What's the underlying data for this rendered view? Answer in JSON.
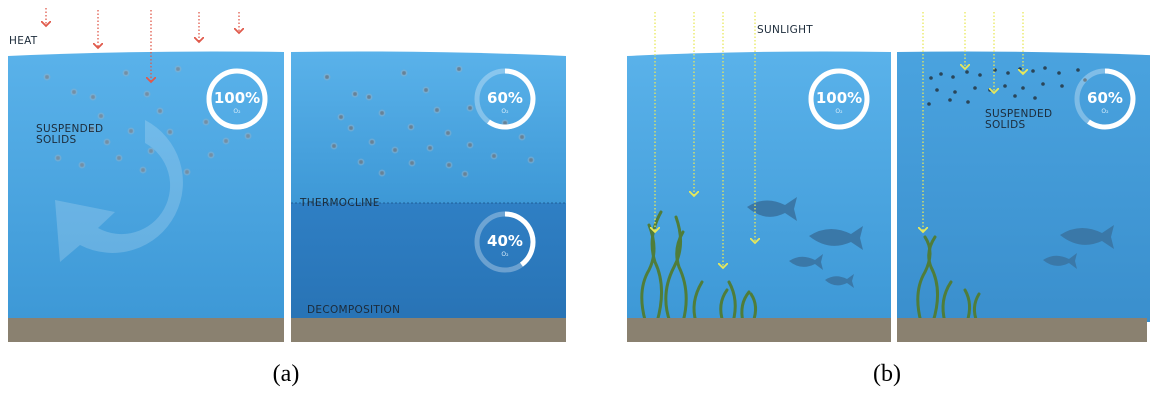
{
  "panel_a": {
    "caption": "(a)",
    "heat_label": "HEAT",
    "suspended_label_line1": "SUSPENDED",
    "suspended_label_line2": "SOLIDS",
    "thermocline_label": "THERMOCLINE",
    "decomposition_label": "DECOMPOSITION",
    "left_o2_value": "100%",
    "right_upper_o2_value": "60%",
    "right_lower_o2_value": "40%",
    "o2_symbol": "O₂",
    "left_o2_level": 1.0,
    "right_upper_o2_level": 0.6,
    "right_lower_o2_level": 0.4
  },
  "panel_b": {
    "caption": "(b)",
    "sunlight_label": "SUNLIGHT",
    "suspended_label_line1": "SUSPENDED",
    "suspended_label_line2": "SOLIDS",
    "left_o2_value": "100%",
    "right_o2_value": "60%",
    "o2_symbol": "O₂",
    "left_o2_level": 1.0,
    "right_o2_level": 0.6
  },
  "colors": {
    "water_upper": "#4aa3df",
    "water_lower": "#2f86c9",
    "sediment": "#8a8170",
    "heat_arrow": "#e05a4c",
    "sun_arrow": "#e8e85a",
    "seaweed": "#4f7d3a",
    "fish": "#3a78a8"
  }
}
